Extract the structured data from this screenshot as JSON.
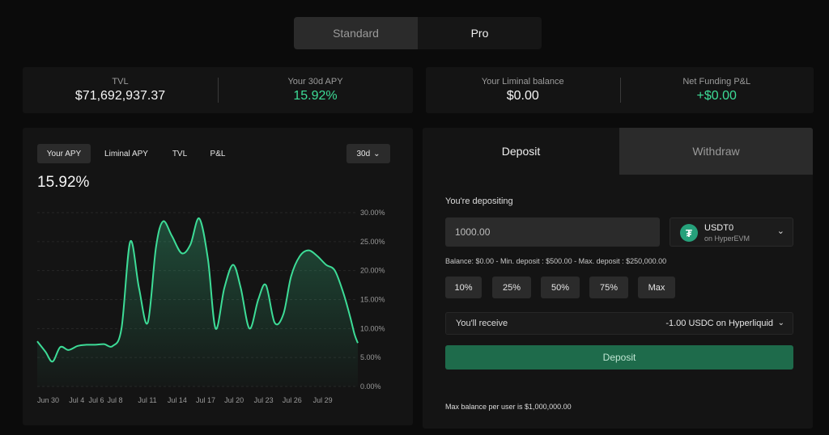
{
  "mode_toggle": {
    "standard": "Standard",
    "pro": "Pro"
  },
  "stats_left": {
    "tvl_label": "TVL",
    "tvl_value": "$71,692,937.37",
    "apy_label": "Your 30d APY",
    "apy_value": "15.92%"
  },
  "stats_right": {
    "balance_label": "Your Liminal balance",
    "balance_value": "$0.00",
    "pnl_label": "Net Funding P&L",
    "pnl_value": "+$0.00"
  },
  "chart_tabs": [
    "Your APY",
    "Liminal APY",
    "TVL",
    "P&L"
  ],
  "range_select": {
    "label": "30d"
  },
  "chart_headline": "15.92%",
  "colors": {
    "accent_green": "#3ddc97",
    "deposit_button": "#1e6b4b",
    "usdt": "#26a17b"
  },
  "chart_data": {
    "type": "area",
    "title": "",
    "xlabel": "",
    "ylabel": "",
    "x_tick_labels": [
      "Jun 30",
      "Jul 4",
      "Jul 6",
      "Jul 8",
      "Jul 11",
      "Jul 14",
      "Jul 17",
      "Jul 20",
      "Jul 23",
      "Jul 26",
      "Jul 29"
    ],
    "y_tick_labels": [
      "30.00%",
      "25.00%",
      "20.00%",
      "15.00%",
      "10.00%",
      "5.00%",
      "0.00%"
    ],
    "ylim": [
      0,
      30
    ],
    "grid": true,
    "series": [
      {
        "x": [
          0.0,
          0.75,
          1.4,
          2.1,
          2.85,
          3.7,
          4.5,
          5.3,
          6.1,
          6.9,
          7.7,
          8.5,
          9.3,
          10.1,
          10.85,
          11.5,
          12.3,
          13.2,
          14.0,
          14.8,
          15.6,
          16.3,
          17.1,
          17.9,
          18.6,
          19.4,
          20.2,
          20.9,
          21.7,
          22.5,
          23.2,
          24.0,
          24.8,
          25.6,
          26.4,
          27.2,
          28.0,
          28.6,
          29.0,
          29.3
        ],
        "y": [
          7.8,
          6.0,
          4.3,
          6.8,
          6.3,
          7.0,
          7.2,
          7.2,
          7.3,
          7.0,
          10.0,
          25.0,
          17.0,
          11.0,
          24.0,
          28.5,
          26.0,
          23.0,
          24.5,
          29.0,
          22.0,
          10.0,
          17.0,
          21.0,
          17.0,
          10.0,
          15.0,
          17.5,
          11.0,
          12.5,
          19.0,
          22.5,
          23.5,
          22.5,
          21.0,
          20.0,
          16.0,
          12.0,
          9.0,
          7.5
        ]
      }
    ]
  },
  "deposit_panel": {
    "tab_deposit": "Deposit",
    "tab_withdraw": "Withdraw",
    "depositing_label": "You're depositing",
    "amount_value": "1000.00",
    "token": {
      "name": "USDT0",
      "network": "on HyperEVM",
      "icon": "tether-logo"
    },
    "balance_info": "Balance: $0.00 - Min. deposit : $500.00 - Max. deposit : $250,000.00",
    "percent_buttons": [
      "10%",
      "25%",
      "50%",
      "75%",
      "Max"
    ],
    "receive_label": "You'll receive",
    "receive_value": "-1.00 USDC on Hyperliquid",
    "deposit_button": "Deposit",
    "max_balance_note": "Max balance per user is $1,000,000.00"
  }
}
